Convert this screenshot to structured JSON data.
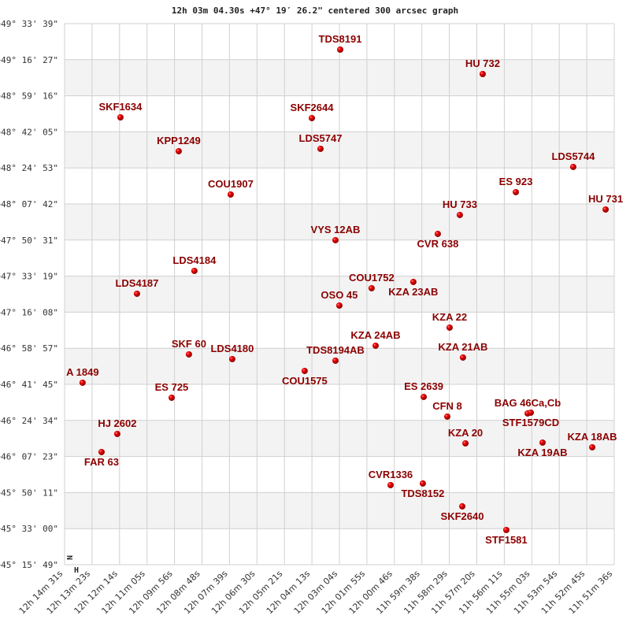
{
  "chart_data": {
    "type": "scatter",
    "title": "12h 03m 04.30s +47° 19′ 26.2\" centered 300 arcsec graph",
    "xlabel": "",
    "ylabel": "",
    "x_units": "right ascension (hours)",
    "y_units": "declination (degrees)",
    "xlim": [
      12.2419,
      11.86
    ],
    "ylim": [
      49.5608,
      45.2636
    ],
    "grid": true,
    "banded_rows": true,
    "colors": {
      "marker": "#dd0000",
      "label": "#8b0000",
      "band": "#f3f3f3",
      "grid": "#d0d0d0"
    },
    "x_tick_labels": [
      "12h 14m 31s",
      "12h 13m 23s",
      "12h 12m 14s",
      "12h 11m 05s",
      "12h 09m 56s",
      "12h 08m 48s",
      "12h 07m 39s",
      "12h 06m 30s",
      "12h 05m 21s",
      "12h 04m 13s",
      "12h 03m 04s",
      "12h 01m 55s",
      "12h 00m 46s",
      "11h 59m 38s",
      "11h 58m 29s",
      "11h 57m 20s",
      "11h 56m 11s",
      "11h 55m 03s",
      "11h 53m 54s",
      "11h 52m 45s",
      "11h 51m 36s"
    ],
    "y_tick_labels": [
      "+49° 33' 39\"",
      "+49° 16' 27\"",
      "+48° 59' 16\"",
      "+48° 42' 05\"",
      "+48° 24' 53\"",
      "+48° 07' 42\"",
      "+47° 50' 31\"",
      "+47° 33' 19\"",
      "+47° 16' 08\"",
      "+46° 58' 57\"",
      "+46° 41' 45\"",
      "+46° 24' 34\"",
      "+46° 07' 23\"",
      "+45° 50' 11\"",
      "+45° 33' 00\"",
      "+45° 15' 49\""
    ],
    "compass": {
      "north": "N",
      "east": "H"
    },
    "points": [
      {
        "name": "TDS8191",
        "ra": 12.0504,
        "dec": 49.3544
      },
      {
        "name": "HU  732",
        "ra": 11.9514,
        "dec": 49.1605
      },
      {
        "name": "SKF1634",
        "ra": 12.2031,
        "dec": 48.8165
      },
      {
        "name": "SKF2644",
        "ra": 12.0701,
        "dec": 48.8103
      },
      {
        "name": "KPP1249",
        "ra": 12.1626,
        "dec": 48.5476
      },
      {
        "name": "LDS5747",
        "ra": 12.0641,
        "dec": 48.5664
      },
      {
        "name": "LDS5744",
        "ra": 11.8885,
        "dec": 48.4225
      },
      {
        "name": "COU1907",
        "ra": 12.1265,
        "dec": 48.2036
      },
      {
        "name": "ES  923",
        "ra": 11.9284,
        "dec": 48.2224
      },
      {
        "name": "HU  733",
        "ra": 11.9673,
        "dec": 48.041
      },
      {
        "name": "HU  731",
        "ra": 11.866,
        "dec": 48.0848
      },
      {
        "name": "CVR 638",
        "ra": 11.9826,
        "dec": 47.8909
      },
      {
        "name": "VYS  12AB",
        "ra": 12.0537,
        "dec": 47.8408
      },
      {
        "name": "LDS4184",
        "ra": 12.1517,
        "dec": 47.5969
      },
      {
        "name": "COU1752",
        "ra": 12.0286,
        "dec": 47.4593
      },
      {
        "name": "KZA  23AB",
        "ra": 11.9996,
        "dec": 47.5094
      },
      {
        "name": "LDS4187",
        "ra": 12.1916,
        "dec": 47.4155
      },
      {
        "name": "OSO  45",
        "ra": 12.051,
        "dec": 47.3217
      },
      {
        "name": "KZA  22",
        "ra": 11.9744,
        "dec": 47.1466
      },
      {
        "name": "KZA  24AB",
        "ra": 12.0258,
        "dec": 47.0028
      },
      {
        "name": "SKF  60",
        "ra": 12.1555,
        "dec": 46.934
      },
      {
        "name": "KZA  21AB",
        "ra": 11.9651,
        "dec": 46.9089
      },
      {
        "name": "LDS4180",
        "ra": 12.1254,
        "dec": 46.8964
      },
      {
        "name": "TDS8194AB",
        "ra": 12.0537,
        "dec": 46.8839
      },
      {
        "name": "COU1575",
        "ra": 12.0751,
        "dec": 46.8026
      },
      {
        "name": "A  1849",
        "ra": 12.2294,
        "dec": 46.7088
      },
      {
        "name": "ES  725",
        "ra": 12.1675,
        "dec": 46.59
      },
      {
        "name": "ES 2639",
        "ra": 11.9924,
        "dec": 46.5962
      },
      {
        "name": "CFN   8",
        "ra": 11.976,
        "dec": 46.4399
      },
      {
        "name": "BAG  46Ca,Cb",
        "ra": 11.9202,
        "dec": 46.4649
      },
      {
        "name": "STF1579CD",
        "ra": 11.918,
        "dec": 46.4711
      },
      {
        "name": "HJ 2602",
        "ra": 12.2053,
        "dec": 46.3023
      },
      {
        "name": "KZA  20",
        "ra": 11.9634,
        "dec": 46.2272
      },
      {
        "name": "KZA  19AB",
        "ra": 11.9098,
        "dec": 46.2335
      },
      {
        "name": "KZA  18AB",
        "ra": 11.8753,
        "dec": 46.1959
      },
      {
        "name": "FAR  63",
        "ra": 12.2162,
        "dec": 46.1584
      },
      {
        "name": "CVR1336",
        "ra": 12.0154,
        "dec": 45.8957
      },
      {
        "name": "TDS8152",
        "ra": 11.993,
        "dec": 45.9083
      },
      {
        "name": "SKF2640",
        "ra": 11.9656,
        "dec": 45.7269
      },
      {
        "name": "STF1581",
        "ra": 11.935,
        "dec": 45.5392
      }
    ]
  }
}
